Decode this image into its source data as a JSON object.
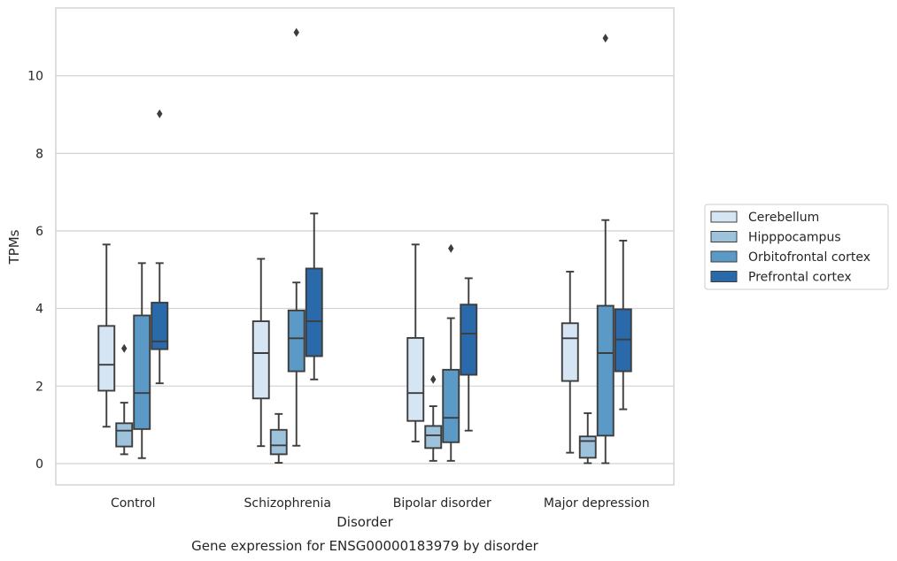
{
  "chart_data": {
    "type": "box",
    "caption": "Gene expression for ENSG00000183979 by disorder",
    "xlabel": "Disorder",
    "ylabel": "TPMs",
    "ylim": [
      -0.55,
      11.75
    ],
    "yticks": [
      0,
      2,
      4,
      6,
      8,
      10
    ],
    "grid": "horizontal",
    "legend_position": "right",
    "categories": [
      "Control",
      "Schizophrenia",
      "Bipolar disorder",
      "Major depression"
    ],
    "series": [
      {
        "name": "Cerebellum",
        "color": "#d6e5f4",
        "boxes": [
          {
            "whislo": 0.95,
            "q1": 1.88,
            "med": 2.55,
            "q3": 3.55,
            "whishi": 5.65,
            "fliers": []
          },
          {
            "whislo": 0.45,
            "q1": 1.68,
            "med": 2.85,
            "q3": 3.67,
            "whishi": 5.28,
            "fliers": []
          },
          {
            "whislo": 0.57,
            "q1": 1.1,
            "med": 1.82,
            "q3": 3.24,
            "whishi": 5.65,
            "fliers": []
          },
          {
            "whislo": 0.28,
            "q1": 2.13,
            "med": 3.23,
            "q3": 3.62,
            "whishi": 4.95,
            "fliers": []
          }
        ]
      },
      {
        "name": "Hipppocampus",
        "color": "#9cc2dc",
        "boxes": [
          {
            "whislo": 0.24,
            "q1": 0.44,
            "med": 0.85,
            "q3": 1.04,
            "whishi": 1.57,
            "fliers": [
              2.97
            ]
          },
          {
            "whislo": 0.02,
            "q1": 0.24,
            "med": 0.47,
            "q3": 0.87,
            "whishi": 1.28,
            "fliers": []
          },
          {
            "whislo": 0.07,
            "q1": 0.4,
            "med": 0.73,
            "q3": 0.97,
            "whishi": 1.48,
            "fliers": [
              2.17
            ]
          },
          {
            "whislo": 0.01,
            "q1": 0.15,
            "med": 0.58,
            "q3": 0.7,
            "whishi": 1.3,
            "fliers": []
          }
        ]
      },
      {
        "name": "Orbitofrontal cortex",
        "color": "#5b9ac6",
        "boxes": [
          {
            "whislo": 0.14,
            "q1": 0.89,
            "med": 1.82,
            "q3": 3.82,
            "whishi": 5.17,
            "fliers": []
          },
          {
            "whislo": 0.46,
            "q1": 2.38,
            "med": 3.23,
            "q3": 3.95,
            "whishi": 4.67,
            "fliers": [
              11.12
            ]
          },
          {
            "whislo": 0.07,
            "q1": 0.55,
            "med": 1.18,
            "q3": 2.42,
            "whishi": 3.75,
            "fliers": [
              5.55
            ]
          },
          {
            "whislo": 0.01,
            "q1": 0.72,
            "med": 2.85,
            "q3": 4.07,
            "whishi": 6.28,
            "fliers": [
              10.97
            ]
          }
        ]
      },
      {
        "name": "Prefrontal cortex",
        "color": "#2a6aaa",
        "boxes": [
          {
            "whislo": 2.07,
            "q1": 2.95,
            "med": 3.15,
            "q3": 4.15,
            "whishi": 5.17,
            "fliers": [
              9.02
            ]
          },
          {
            "whislo": 2.17,
            "q1": 2.77,
            "med": 3.67,
            "q3": 5.03,
            "whishi": 6.45,
            "fliers": []
          },
          {
            "whislo": 0.85,
            "q1": 2.29,
            "med": 3.35,
            "q3": 4.1,
            "whishi": 4.78,
            "fliers": []
          },
          {
            "whislo": 1.4,
            "q1": 2.38,
            "med": 3.2,
            "q3": 3.98,
            "whishi": 5.75,
            "fliers": []
          }
        ]
      }
    ]
  }
}
